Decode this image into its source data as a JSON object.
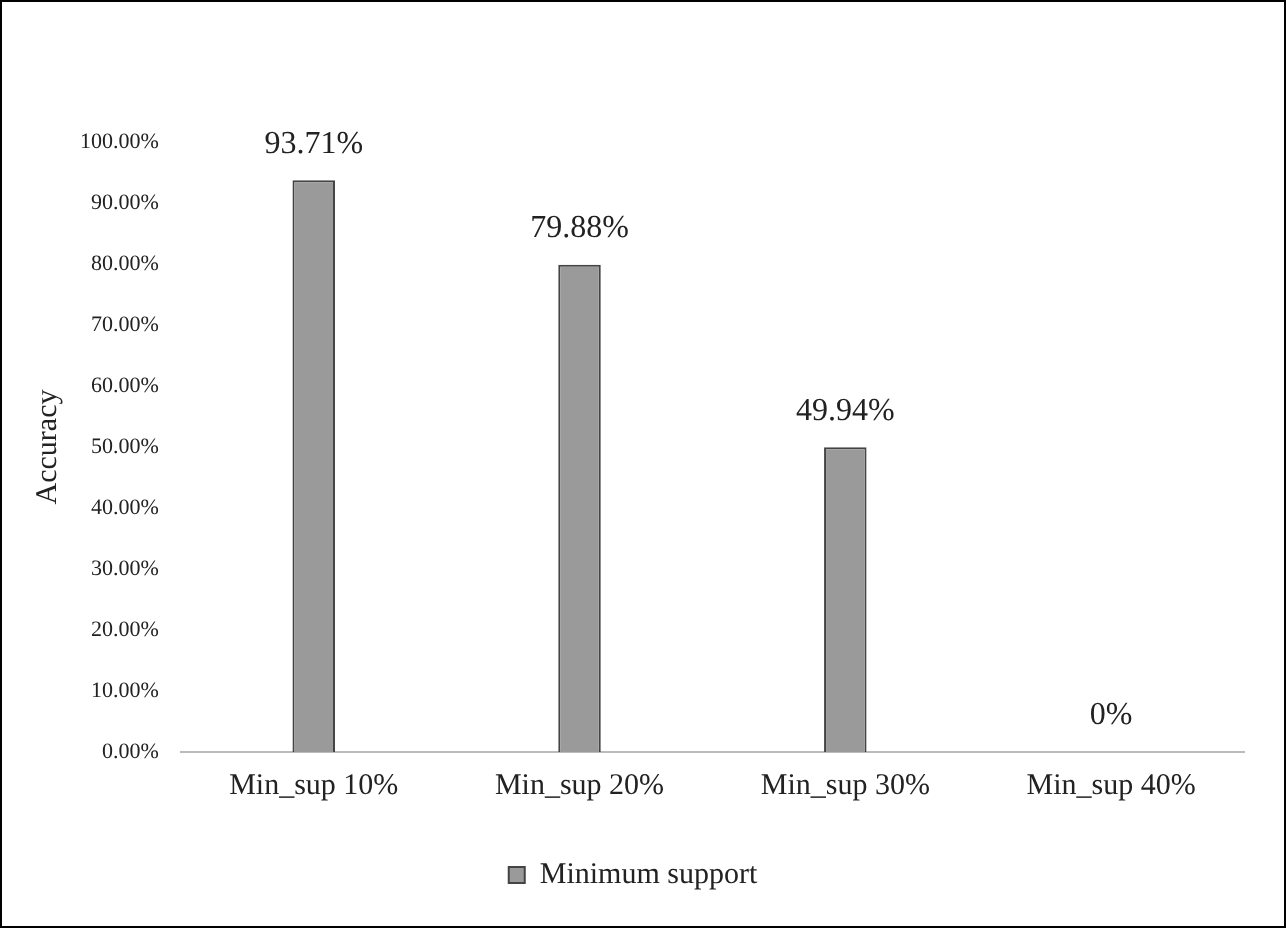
{
  "chart_data": {
    "type": "bar",
    "ylabel": "Accuracy",
    "categories": [
      "Min_sup 10%",
      "Min_sup 20%",
      "Min_sup 30%",
      "Min_sup 40%"
    ],
    "series": [
      {
        "name": "Minimum support",
        "color": "#9a9a9a",
        "values": [
          93.71,
          79.88,
          49.94,
          0
        ],
        "value_labels": [
          "93.71%",
          "79.88%",
          "49.94%",
          "0%"
        ]
      }
    ],
    "ylim": [
      0,
      100
    ],
    "yticks": [
      {
        "value": 0,
        "label": "0.00%"
      },
      {
        "value": 10,
        "label": "10.00%"
      },
      {
        "value": 20,
        "label": "20.00%"
      },
      {
        "value": 30,
        "label": "30.00%"
      },
      {
        "value": 40,
        "label": "40.00%"
      },
      {
        "value": 50,
        "label": "50.00%"
      },
      {
        "value": 60,
        "label": "60.00%"
      },
      {
        "value": 70,
        "label": "70.00%"
      },
      {
        "value": 80,
        "label": "80.00%"
      },
      {
        "value": 90,
        "label": "90.00%"
      },
      {
        "value": 100,
        "label": "100.00%"
      }
    ],
    "legend": "bottom"
  }
}
